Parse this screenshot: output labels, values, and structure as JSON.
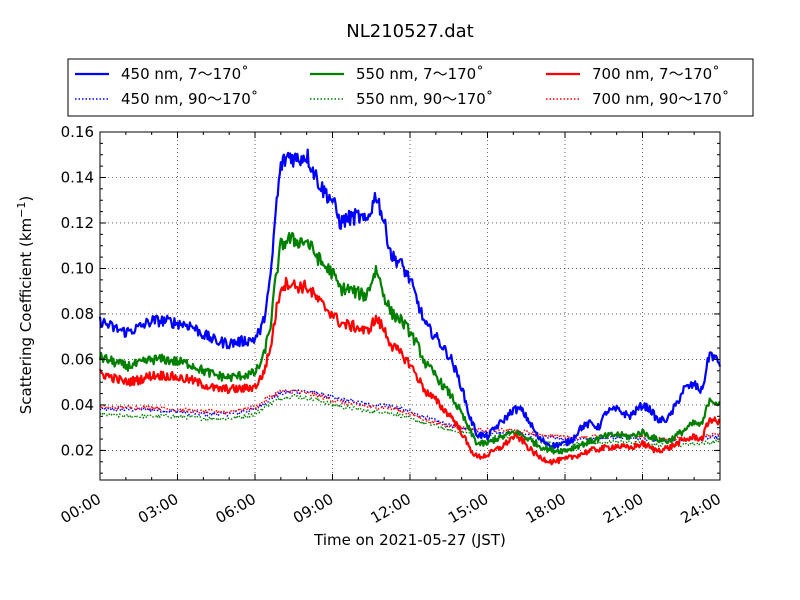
{
  "chart_data": {
    "type": "line",
    "title": "NL210527.dat",
    "xlabel": "Time on 2021-05-27 (JST)",
    "ylabel": "Scattering Coefficient (km⁻¹)",
    "xlim": [
      0,
      24
    ],
    "ylim": [
      0.007,
      0.16
    ],
    "x_ticks": [
      "00:00",
      "03:00",
      "06:00",
      "09:00",
      "12:00",
      "15:00",
      "18:00",
      "21:00",
      "24:00"
    ],
    "y_ticks": [
      "0.02",
      "0.04",
      "0.06",
      "0.08",
      "0.10",
      "0.12",
      "0.14",
      "0.16"
    ],
    "grid": true,
    "legend_position": "top",
    "x_unit": "hours",
    "series": [
      {
        "name": "450 nm, 7～170˚",
        "color": "#0000ff",
        "style": "solid",
        "points": [
          [
            0,
            0.077
          ],
          [
            0.5,
            0.074
          ],
          [
            1,
            0.072
          ],
          [
            1.5,
            0.074
          ],
          [
            2,
            0.077
          ],
          [
            2.5,
            0.077
          ],
          [
            3,
            0.076
          ],
          [
            3.5,
            0.075
          ],
          [
            4,
            0.071
          ],
          [
            4.5,
            0.068
          ],
          [
            5,
            0.067
          ],
          [
            5.5,
            0.068
          ],
          [
            6,
            0.069
          ],
          [
            6.3,
            0.075
          ],
          [
            6.6,
            0.095
          ],
          [
            6.8,
            0.125
          ],
          [
            7,
            0.145
          ],
          [
            7.3,
            0.15
          ],
          [
            7.6,
            0.148
          ],
          [
            8,
            0.15
          ],
          [
            8.3,
            0.142
          ],
          [
            8.6,
            0.135
          ],
          [
            9,
            0.13
          ],
          [
            9.3,
            0.12
          ],
          [
            9.6,
            0.122
          ],
          [
            10,
            0.123
          ],
          [
            10.3,
            0.12
          ],
          [
            10.7,
            0.133
          ],
          [
            11,
            0.12
          ],
          [
            11.3,
            0.105
          ],
          [
            11.6,
            0.103
          ],
          [
            12,
            0.095
          ],
          [
            12.3,
            0.085
          ],
          [
            12.6,
            0.075
          ],
          [
            13,
            0.07
          ],
          [
            13.3,
            0.065
          ],
          [
            13.6,
            0.06
          ],
          [
            14,
            0.048
          ],
          [
            14.3,
            0.035
          ],
          [
            14.6,
            0.027
          ],
          [
            15,
            0.026
          ],
          [
            15.3,
            0.03
          ],
          [
            15.6,
            0.033
          ],
          [
            16,
            0.038
          ],
          [
            16.3,
            0.038
          ],
          [
            16.6,
            0.033
          ],
          [
            17,
            0.025
          ],
          [
            17.5,
            0.022
          ],
          [
            18,
            0.023
          ],
          [
            18.3,
            0.025
          ],
          [
            18.6,
            0.03
          ],
          [
            19,
            0.032
          ],
          [
            19.3,
            0.03
          ],
          [
            19.6,
            0.037
          ],
          [
            20,
            0.038
          ],
          [
            20.5,
            0.035
          ],
          [
            21,
            0.04
          ],
          [
            21.3,
            0.038
          ],
          [
            21.6,
            0.033
          ],
          [
            22,
            0.034
          ],
          [
            22.3,
            0.04
          ],
          [
            22.6,
            0.047
          ],
          [
            23,
            0.049
          ],
          [
            23.3,
            0.046
          ],
          [
            23.6,
            0.063
          ],
          [
            24,
            0.058
          ]
        ]
      },
      {
        "name": "450 nm, 90～170˚",
        "color": "#0000ff",
        "style": "dotted",
        "points": [
          [
            0,
            0.038
          ],
          [
            1,
            0.038
          ],
          [
            2,
            0.038
          ],
          [
            3,
            0.037
          ],
          [
            4,
            0.036
          ],
          [
            5,
            0.036
          ],
          [
            6,
            0.038
          ],
          [
            6.5,
            0.042
          ],
          [
            7,
            0.045
          ],
          [
            7.5,
            0.046
          ],
          [
            8,
            0.046
          ],
          [
            8.5,
            0.045
          ],
          [
            9,
            0.043
          ],
          [
            9.5,
            0.042
          ],
          [
            10,
            0.041
          ],
          [
            10.5,
            0.04
          ],
          [
            11,
            0.04
          ],
          [
            11.5,
            0.039
          ],
          [
            12,
            0.037
          ],
          [
            12.5,
            0.035
          ],
          [
            13,
            0.033
          ],
          [
            13.5,
            0.031
          ],
          [
            14,
            0.03
          ],
          [
            15,
            0.028
          ],
          [
            16,
            0.028
          ],
          [
            17,
            0.026
          ],
          [
            18,
            0.025
          ],
          [
            19,
            0.025
          ],
          [
            20,
            0.026
          ],
          [
            21,
            0.025
          ],
          [
            22,
            0.024
          ],
          [
            23,
            0.025
          ],
          [
            24,
            0.026
          ]
        ]
      },
      {
        "name": "550 nm, 7～170˚",
        "color": "#008000",
        "style": "solid",
        "points": [
          [
            0,
            0.061
          ],
          [
            0.5,
            0.059
          ],
          [
            1,
            0.057
          ],
          [
            1.5,
            0.058
          ],
          [
            2,
            0.06
          ],
          [
            2.5,
            0.06
          ],
          [
            3,
            0.059
          ],
          [
            3.5,
            0.058
          ],
          [
            4,
            0.055
          ],
          [
            4.5,
            0.053
          ],
          [
            5,
            0.052
          ],
          [
            5.5,
            0.053
          ],
          [
            6,
            0.054
          ],
          [
            6.3,
            0.06
          ],
          [
            6.6,
            0.075
          ],
          [
            6.8,
            0.095
          ],
          [
            7,
            0.11
          ],
          [
            7.3,
            0.113
          ],
          [
            7.6,
            0.112
          ],
          [
            8,
            0.112
          ],
          [
            8.3,
            0.107
          ],
          [
            8.6,
            0.102
          ],
          [
            9,
            0.098
          ],
          [
            9.3,
            0.091
          ],
          [
            9.6,
            0.091
          ],
          [
            10,
            0.089
          ],
          [
            10.3,
            0.088
          ],
          [
            10.7,
            0.1
          ],
          [
            11,
            0.088
          ],
          [
            11.3,
            0.08
          ],
          [
            11.6,
            0.078
          ],
          [
            12,
            0.072
          ],
          [
            12.3,
            0.066
          ],
          [
            12.6,
            0.058
          ],
          [
            13,
            0.053
          ],
          [
            13.3,
            0.048
          ],
          [
            13.6,
            0.044
          ],
          [
            14,
            0.036
          ],
          [
            14.3,
            0.029
          ],
          [
            14.6,
            0.023
          ],
          [
            15,
            0.023
          ],
          [
            15.3,
            0.025
          ],
          [
            15.6,
            0.026
          ],
          [
            16,
            0.028
          ],
          [
            16.3,
            0.027
          ],
          [
            16.6,
            0.025
          ],
          [
            17,
            0.022
          ],
          [
            17.5,
            0.02
          ],
          [
            18,
            0.02
          ],
          [
            18.5,
            0.022
          ],
          [
            19,
            0.024
          ],
          [
            19.5,
            0.026
          ],
          [
            20,
            0.027
          ],
          [
            20.5,
            0.026
          ],
          [
            21,
            0.028
          ],
          [
            21.5,
            0.025
          ],
          [
            22,
            0.024
          ],
          [
            22.5,
            0.028
          ],
          [
            23,
            0.032
          ],
          [
            23.3,
            0.031
          ],
          [
            23.6,
            0.043
          ],
          [
            24,
            0.04
          ]
        ]
      },
      {
        "name": "550 nm, 90～170˚",
        "color": "#008000",
        "style": "dotted",
        "points": [
          [
            0,
            0.036
          ],
          [
            1,
            0.035
          ],
          [
            2,
            0.035
          ],
          [
            3,
            0.035
          ],
          [
            4,
            0.034
          ],
          [
            5,
            0.034
          ],
          [
            6,
            0.036
          ],
          [
            6.5,
            0.04
          ],
          [
            7,
            0.043
          ],
          [
            7.5,
            0.044
          ],
          [
            8,
            0.043
          ],
          [
            8.5,
            0.042
          ],
          [
            9,
            0.04
          ],
          [
            9.5,
            0.039
          ],
          [
            10,
            0.038
          ],
          [
            10.5,
            0.037
          ],
          [
            11,
            0.037
          ],
          [
            11.5,
            0.036
          ],
          [
            12,
            0.034
          ],
          [
            12.5,
            0.032
          ],
          [
            13,
            0.031
          ],
          [
            13.5,
            0.029
          ],
          [
            14,
            0.028
          ],
          [
            15,
            0.026
          ],
          [
            16,
            0.026
          ],
          [
            17,
            0.024
          ],
          [
            18,
            0.023
          ],
          [
            19,
            0.023
          ],
          [
            20,
            0.024
          ],
          [
            21,
            0.023
          ],
          [
            22,
            0.022
          ],
          [
            23,
            0.023
          ],
          [
            24,
            0.024
          ]
        ]
      },
      {
        "name": "700 nm, 7～170˚",
        "color": "#ff0000",
        "style": "solid",
        "points": [
          [
            0,
            0.054
          ],
          [
            0.5,
            0.052
          ],
          [
            1,
            0.05
          ],
          [
            1.5,
            0.051
          ],
          [
            2,
            0.053
          ],
          [
            2.5,
            0.053
          ],
          [
            3,
            0.052
          ],
          [
            3.5,
            0.051
          ],
          [
            4,
            0.049
          ],
          [
            4.5,
            0.047
          ],
          [
            5,
            0.047
          ],
          [
            5.5,
            0.047
          ],
          [
            6,
            0.048
          ],
          [
            6.3,
            0.053
          ],
          [
            6.6,
            0.065
          ],
          [
            6.8,
            0.08
          ],
          [
            7,
            0.092
          ],
          [
            7.3,
            0.094
          ],
          [
            7.6,
            0.092
          ],
          [
            8,
            0.092
          ],
          [
            8.3,
            0.088
          ],
          [
            8.6,
            0.084
          ],
          [
            9,
            0.08
          ],
          [
            9.3,
            0.076
          ],
          [
            9.6,
            0.075
          ],
          [
            10,
            0.074
          ],
          [
            10.3,
            0.072
          ],
          [
            10.7,
            0.078
          ],
          [
            11,
            0.073
          ],
          [
            11.3,
            0.066
          ],
          [
            11.6,
            0.063
          ],
          [
            12,
            0.058
          ],
          [
            12.3,
            0.052
          ],
          [
            12.6,
            0.046
          ],
          [
            13,
            0.042
          ],
          [
            13.3,
            0.038
          ],
          [
            13.6,
            0.035
          ],
          [
            14,
            0.028
          ],
          [
            14.3,
            0.021
          ],
          [
            14.6,
            0.017
          ],
          [
            15,
            0.018
          ],
          [
            15.3,
            0.02
          ],
          [
            15.6,
            0.022
          ],
          [
            16,
            0.026
          ],
          [
            16.3,
            0.025
          ],
          [
            16.6,
            0.021
          ],
          [
            17,
            0.017
          ],
          [
            17.5,
            0.015
          ],
          [
            18,
            0.016
          ],
          [
            18.5,
            0.018
          ],
          [
            19,
            0.02
          ],
          [
            19.5,
            0.021
          ],
          [
            20,
            0.022
          ],
          [
            20.5,
            0.021
          ],
          [
            21,
            0.023
          ],
          [
            21.5,
            0.02
          ],
          [
            22,
            0.021
          ],
          [
            22.5,
            0.024
          ],
          [
            23,
            0.026
          ],
          [
            23.3,
            0.025
          ],
          [
            23.6,
            0.034
          ],
          [
            24,
            0.032
          ]
        ]
      },
      {
        "name": "700 nm, 90～170˚",
        "color": "#ff0000",
        "style": "dotted",
        "points": [
          [
            0,
            0.039
          ],
          [
            1,
            0.039
          ],
          [
            2,
            0.039
          ],
          [
            3,
            0.038
          ],
          [
            4,
            0.037
          ],
          [
            5,
            0.037
          ],
          [
            6,
            0.039
          ],
          [
            6.5,
            0.043
          ],
          [
            7,
            0.046
          ],
          [
            7.5,
            0.046
          ],
          [
            8,
            0.045
          ],
          [
            8.5,
            0.044
          ],
          [
            9,
            0.042
          ],
          [
            9.5,
            0.041
          ],
          [
            10,
            0.04
          ],
          [
            10.5,
            0.039
          ],
          [
            11,
            0.039
          ],
          [
            11.5,
            0.038
          ],
          [
            12,
            0.036
          ],
          [
            12.5,
            0.034
          ],
          [
            13,
            0.032
          ],
          [
            13.5,
            0.031
          ],
          [
            14,
            0.03
          ],
          [
            15,
            0.029
          ],
          [
            16,
            0.029
          ],
          [
            17,
            0.027
          ],
          [
            18,
            0.026
          ],
          [
            19,
            0.026
          ],
          [
            20,
            0.027
          ],
          [
            21,
            0.026
          ],
          [
            22,
            0.025
          ],
          [
            23,
            0.026
          ],
          [
            24,
            0.027
          ]
        ]
      }
    ]
  }
}
